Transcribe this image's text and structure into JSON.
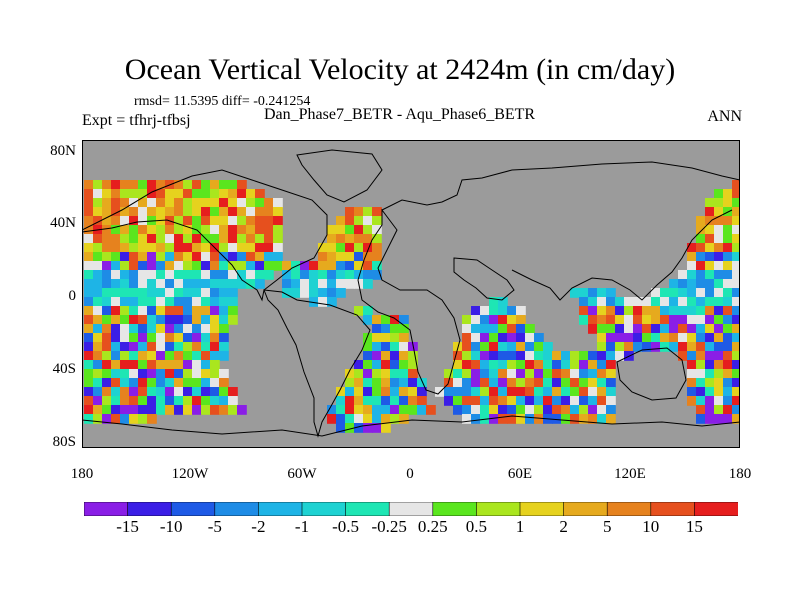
{
  "title": "Ocean Vertical Velocity at 2424m (in cm/day)",
  "stats": "rmsd= 11.5395  diff= -0.241254",
  "experiment": "Expt = tfhrj-tfbsj",
  "comparison": "Dan_Phase7_BETR - Aqu_Phase6_BETR",
  "season": "ANN",
  "lat_labels": [
    "80N",
    "40N",
    "0",
    "40S",
    "80S"
  ],
  "lon_labels": [
    "180",
    "120W",
    "60W",
    "0",
    "60E",
    "120E",
    "180"
  ],
  "colorbar": {
    "labels": [
      "-15",
      "-10",
      "-5",
      "-2",
      "-1",
      "-0.5",
      "-0.25",
      "0.25",
      "0.5",
      "1",
      "2",
      "5",
      "10",
      "15"
    ],
    "colors": [
      "#8a1ee6",
      "#3b1ee6",
      "#1e5ae6",
      "#1e8ce6",
      "#1eb4e6",
      "#1ed2d2",
      "#1ee6b4",
      "#e6e6e6",
      "#5ae61e",
      "#aae61e",
      "#e6d21e",
      "#e6aa1e",
      "#e6821e",
      "#e6501e",
      "#e61e1e"
    ]
  },
  "colors": {
    "land": "#9b9b9b",
    "coast": "#000000",
    "ocean_palette": [
      "#8a1ee6",
      "#3b1ee6",
      "#1e5ae6",
      "#1e8ce6",
      "#1eb4e6",
      "#1ed2d2",
      "#1ee6b4",
      "#e6e6e6",
      "#5ae61e",
      "#aae61e",
      "#e6d21e",
      "#e6aa1e",
      "#e6821e",
      "#e6501e",
      "#e61e1e"
    ]
  }
}
